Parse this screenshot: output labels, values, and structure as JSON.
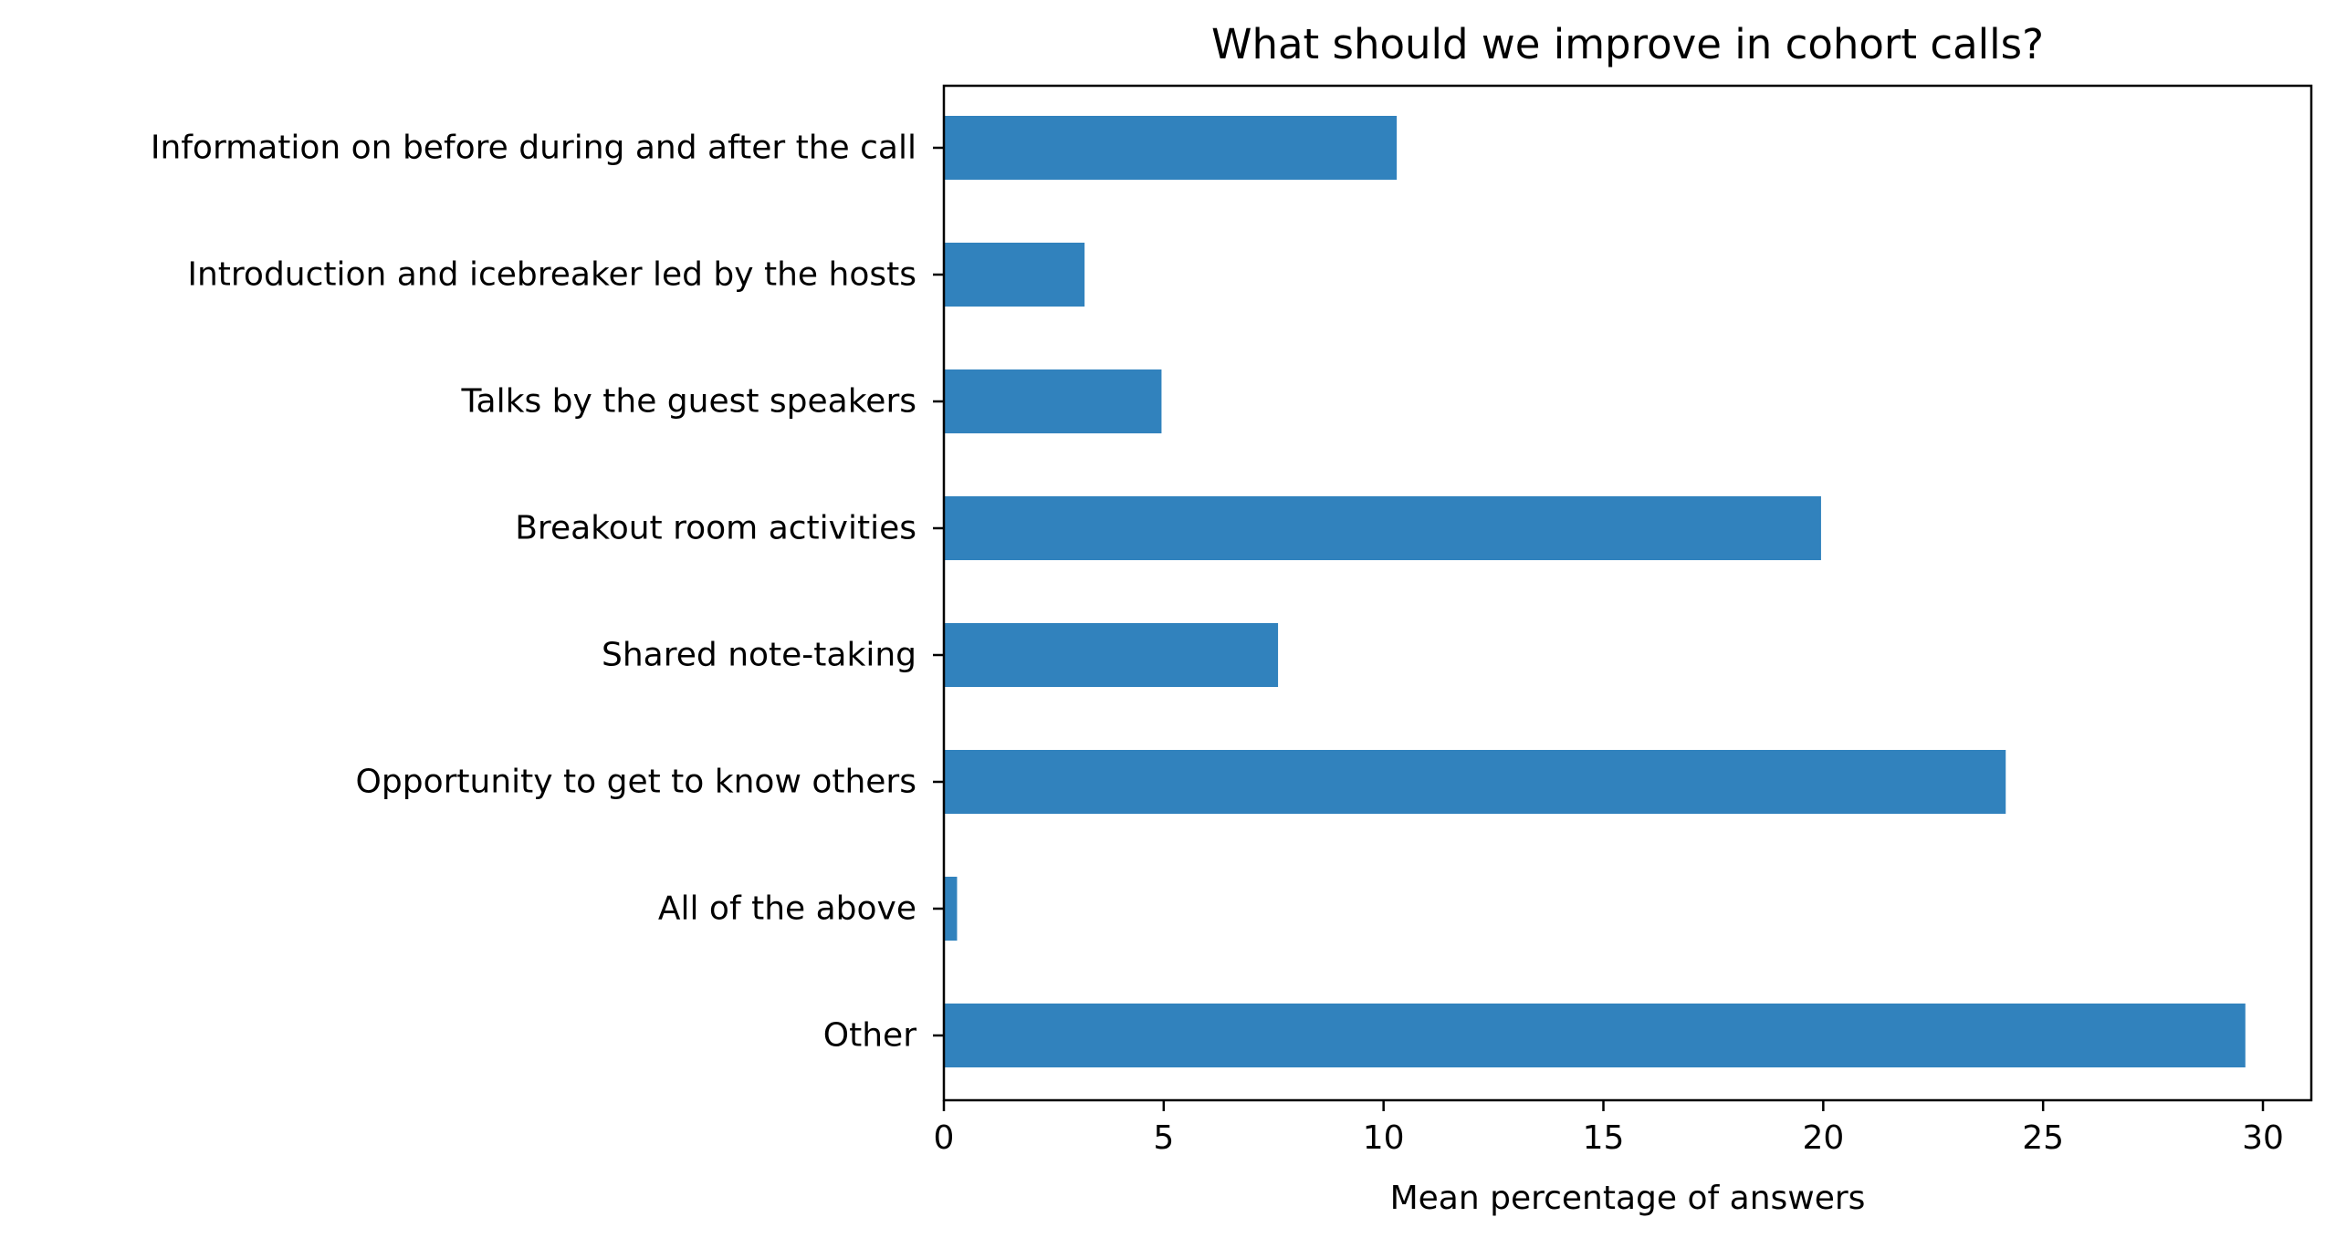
{
  "chart_data": {
    "type": "bar",
    "orientation": "horizontal",
    "title": "What should we improve in cohort calls?",
    "xlabel": "Mean percentage of answers",
    "ylabel": "",
    "xlim": [
      0,
      31.1
    ],
    "xticks": [
      0,
      5,
      10,
      15,
      20,
      25,
      30
    ],
    "categories": [
      "Information on before during and after the call",
      "Introduction and icebreaker led by the hosts",
      "Talks by the guest speakers",
      "Breakout room activities",
      "Shared note-taking",
      "Opportunity to get to know others",
      "All of the above",
      "Other"
    ],
    "values": [
      10.3,
      3.2,
      4.95,
      19.95,
      7.6,
      24.15,
      0.3,
      29.6
    ],
    "bar_color": "#3182bd",
    "grid": false,
    "legend": "none"
  }
}
